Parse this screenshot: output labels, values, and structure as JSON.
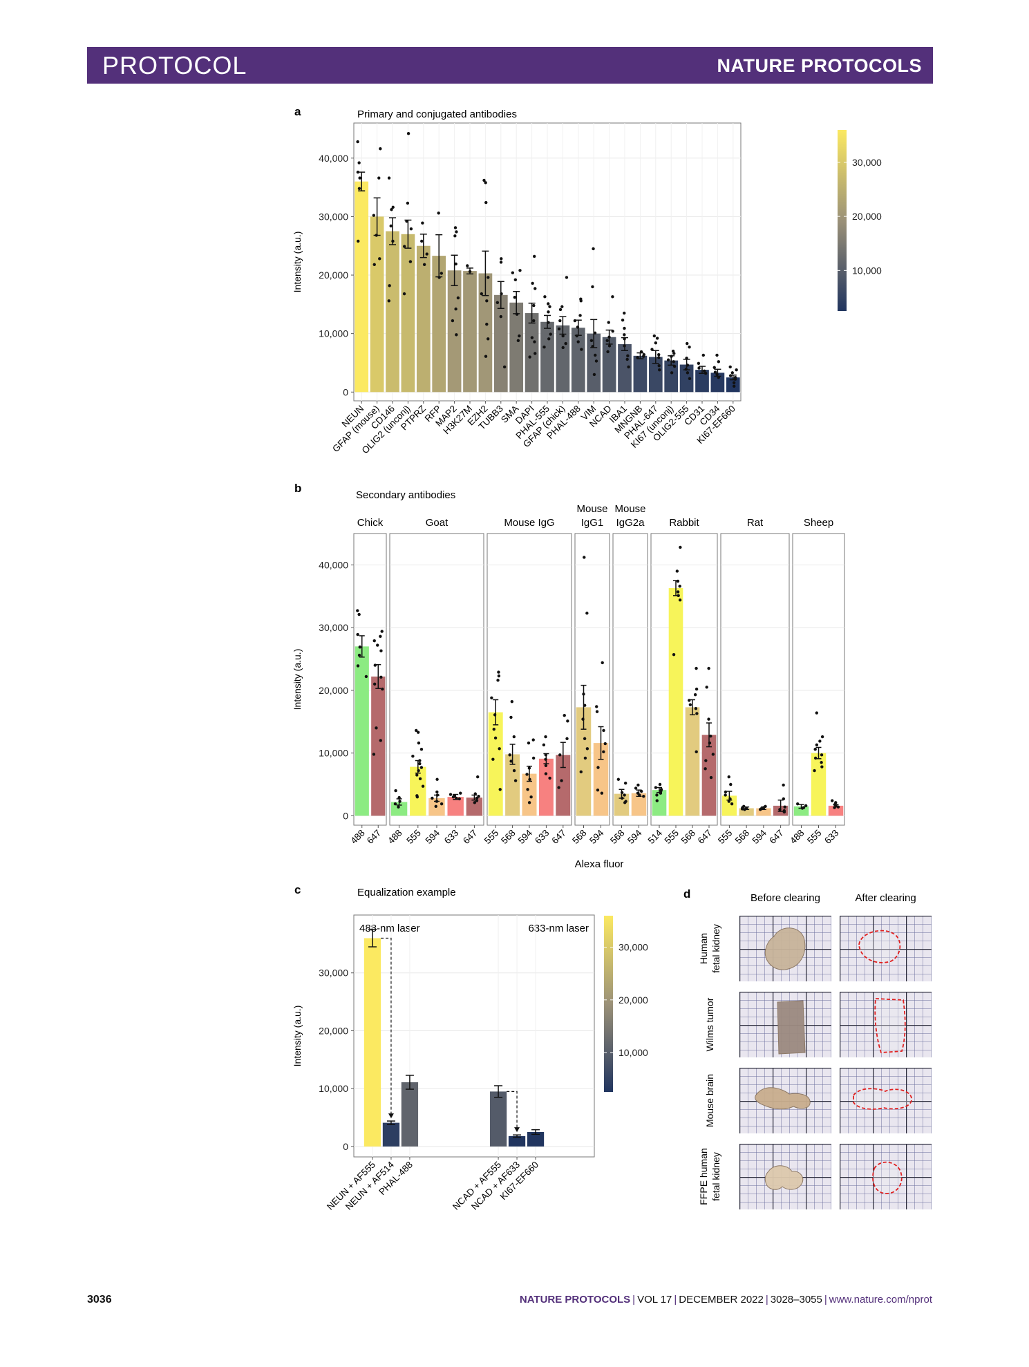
{
  "header": {
    "section": "PROTOCOL",
    "journal": "NATURE PROTOCOLS"
  },
  "footer": {
    "page": "3036",
    "journal": "NATURE PROTOCOLS",
    "volume": "VOL 17",
    "date": "DECEMBER 2022",
    "pages": "3028–3055",
    "url": "www.nature.com/nprot"
  },
  "colors": {
    "banner": "#53307a",
    "viridis_low": "#21355f",
    "viridis_mid": "#9b9178",
    "viridis_high": "#fbe961"
  },
  "chart_data": [
    {
      "id": "a",
      "panel_label": "a",
      "type": "bar",
      "title": "Primary and conjugated antibodies",
      "ylabel": "Intensity (a.u.)",
      "ylim": [
        -1500,
        46000
      ],
      "yticks": [
        0,
        10000,
        20000,
        30000,
        40000
      ],
      "ytick_labels": [
        "0",
        "10,000",
        "20,000",
        "30,000",
        "40,000"
      ],
      "colorbar": {
        "min": 2500,
        "max": 36000,
        "ticks": [
          10000,
          20000,
          30000
        ],
        "tick_labels": [
          "10,000",
          "20,000",
          "30,000"
        ]
      },
      "categories": [
        "NEUN",
        "GFAP (mouse)",
        "CD146",
        "OLIG2 (unconj)",
        "PTPRZ",
        "RFP",
        "MAP2",
        "H3K27M",
        "EZH2",
        "TUBB3",
        "SMA",
        "DAPI",
        "PHAL-555",
        "GFAP (chick)",
        "PHAL-488",
        "VIM",
        "NCAD",
        "IBA1",
        "MNGNB",
        "PHAL-647",
        "KI67 (unconj)",
        "OLIG2-555",
        "CD31",
        "CD34",
        "KI67-EF660"
      ],
      "values": [
        36000,
        30000,
        27500,
        27000,
        25000,
        23300,
        20800,
        20700,
        20300,
        16600,
        15300,
        13500,
        12000,
        11400,
        11000,
        10000,
        9400,
        8200,
        6200,
        6000,
        5400,
        4700,
        3800,
        3300,
        2500
      ],
      "errors": [
        1600,
        3200,
        2300,
        2400,
        2000,
        3600,
        2600,
        500,
        3800,
        2300,
        1900,
        1700,
        1100,
        1500,
        1300,
        2400,
        1200,
        1100,
        500,
        1100,
        800,
        900,
        600,
        600,
        400
      ],
      "points": [
        [
          42800,
          39200,
          37600,
          36600,
          34800,
          25800
        ],
        [
          41600,
          36600,
          30200,
          26800,
          22800,
          21800
        ],
        [
          36600,
          31600,
          31200,
          28400,
          25800,
          18200,
          15600
        ],
        [
          44200,
          32300,
          29200,
          27900,
          24900,
          22300,
          16800
        ],
        [
          28900,
          25800,
          23600,
          21800
        ],
        [
          30600,
          20300,
          19600
        ],
        [
          28100,
          27400,
          26700,
          21900,
          16100,
          14200,
          12200,
          9800
        ],
        [
          21600,
          20600
        ],
        [
          36200,
          35800,
          32400,
          19600,
          16800,
          15600,
          11600,
          9100,
          6100
        ],
        [
          22800,
          22200,
          16800,
          15300,
          12900,
          4300
        ],
        [
          20800,
          20400,
          19200,
          16200,
          13300,
          9600,
          8800
        ],
        [
          23200,
          18600,
          17700,
          14800,
          12200,
          9300,
          8600,
          6600,
          6000
        ],
        [
          16300,
          15100,
          14600,
          13700,
          11900,
          9900,
          9100,
          7700
        ],
        [
          19600,
          14600,
          14100,
          12200,
          10800,
          9600,
          8300,
          7600
        ],
        [
          15900,
          15600,
          13100,
          12200,
          11100,
          9600,
          8600,
          7300
        ],
        [
          24500,
          18000,
          10100,
          8800,
          7800,
          6300,
          5300,
          3000
        ],
        [
          16300,
          11900,
          10400,
          9400,
          8800,
          7900,
          6900
        ],
        [
          13500,
          12300,
          10900,
          9800,
          9100,
          7900,
          6200,
          5600,
          4300
        ],
        [
          6900,
          6400,
          6100,
          5900
        ],
        [
          9600,
          9200,
          8400,
          7300,
          6400,
          5900,
          4500,
          3800
        ],
        [
          7000,
          6600,
          6100,
          5500,
          5200,
          4400,
          3300
        ],
        [
          8300,
          7700,
          5800,
          4600,
          3900,
          3300,
          2300
        ],
        [
          6300,
          4900,
          4100,
          3600,
          3200
        ],
        [
          6300,
          5200,
          4200,
          3400,
          3000,
          2500
        ],
        [
          4300,
          3800,
          3300,
          2800,
          2500,
          2200,
          1600,
          1000
        ]
      ]
    },
    {
      "id": "b",
      "panel_label": "b",
      "type": "bar",
      "title": "Secondary antibodies",
      "xlabel": "Alexa fluor",
      "ylabel": "Intensity (a.u.)",
      "ylim": [
        -1500,
        45000
      ],
      "yticks": [
        0,
        10000,
        20000,
        30000,
        40000
      ],
      "ytick_labels": [
        "0",
        "10,000",
        "20,000",
        "30,000",
        "40,000"
      ],
      "fluor_colors": {
        "488": "#8ceb82",
        "514": "#8ceb82",
        "555": "#f7f45a",
        "568": "#e2cb7f",
        "594": "#f7c588",
        "633": "#f78180",
        "647": "#b56a6c"
      },
      "facets": [
        {
          "label_lines": [
            "Chick"
          ],
          "categories": [
            "488",
            "647"
          ],
          "values": [
            27000,
            22200
          ],
          "errors": [
            1700,
            1900
          ],
          "points": [
            [
              32700,
              32100,
              28900,
              26900,
              25600,
              23900,
              22200
            ],
            [
              29400,
              28600,
              27900,
              27200,
              26300,
              24000,
              22100,
              21000,
              20200,
              14000,
              12000,
              9800
            ]
          ]
        },
        {
          "label_lines": [
            "Goat"
          ],
          "categories": [
            "488",
            "555",
            "594",
            "633",
            "647"
          ],
          "values": [
            2200,
            7800,
            2800,
            3000,
            2900
          ],
          "errors": [
            500,
            1000,
            500,
            400,
            400
          ],
          "points": [
            [
              4000,
              2900,
              2300,
              1900,
              1400
            ],
            [
              13600,
              13300,
              11600,
              10600,
              9500,
              8800,
              8300,
              7700,
              7200,
              6500,
              5900,
              4700,
              3200,
              3000
            ],
            [
              5800,
              3800,
              3300,
              2800,
              2300,
              1900,
              1500
            ],
            [
              3600,
              3400,
              3200,
              3000,
              2800,
              2700
            ],
            [
              6200,
              3500,
              3100,
              2800,
              2400,
              2100
            ]
          ]
        },
        {
          "label_lines": [
            "Mouse IgG"
          ],
          "categories": [
            "555",
            "568",
            "594",
            "633",
            "647"
          ],
          "values": [
            16500,
            9800,
            6700,
            9100,
            9700
          ],
          "errors": [
            2000,
            1600,
            1200,
            800,
            2000
          ],
          "points": [
            [
              22900,
              22300,
              21600,
              18800,
              16100,
              13800,
              12400,
              10700,
              9000,
              4200
            ],
            [
              18200,
              15700,
              12600,
              9700,
              8700,
              7200,
              5600
            ],
            [
              12100,
              11600,
              9200,
              7600,
              6600,
              5800,
              4200,
              3000,
              2100
            ],
            [
              12600,
              11300,
              9700,
              9000,
              8000,
              6700,
              6000
            ],
            [
              16000,
              15100,
              12300,
              9700,
              5600,
              4500
            ]
          ]
        },
        {
          "label_lines": [
            "Mouse",
            "IgG1"
          ],
          "categories": [
            "568",
            "594"
          ],
          "values": [
            17300,
            11600
          ],
          "errors": [
            3500,
            2600
          ],
          "points": [
            [
              41200,
              32300,
              19400,
              17600,
              15400,
              12300,
              10700,
              9200,
              7000
            ],
            [
              24400,
              17400,
              16600,
              13600,
              11500,
              10200,
              7700,
              4100,
              3600
            ]
          ]
        },
        {
          "label_lines": [
            "Mouse",
            "IgG2a"
          ],
          "categories": [
            "568",
            "594"
          ],
          "values": [
            3500,
            3600
          ],
          "errors": [
            700,
            500
          ],
          "points": [
            [
              5800,
              5200,
              3700,
              3300,
              2800,
              2300,
              2100
            ],
            [
              4900,
              4400,
              3900,
              3600,
              3300,
              3100
            ]
          ]
        },
        {
          "label_lines": [
            "Rabbit"
          ],
          "categories": [
            "514",
            "555",
            "568",
            "647"
          ],
          "values": [
            4100,
            36300,
            17300,
            12900
          ],
          "errors": [
            400,
            1200,
            1200,
            1900
          ],
          "points": [
            [
              5000,
              4500,
              4200,
              4000,
              3600,
              3300,
              2400
            ],
            [
              42800,
              39000,
              37400,
              36600,
              35700,
              35100,
              34400,
              25700
            ],
            [
              23500,
              20200,
              19300,
              18400,
              17700,
              17100,
              16300,
              10200
            ],
            [
              23500,
              20500,
              15400,
              12700,
              11600,
              9800,
              8800,
              7500,
              6100
            ]
          ]
        },
        {
          "label_lines": [
            "Rat"
          ],
          "categories": [
            "555",
            "568",
            "594",
            "647"
          ],
          "values": [
            3200,
            1200,
            1200,
            1600
          ],
          "errors": [
            700,
            200,
            200,
            900
          ],
          "points": [
            [
              6200,
              5000,
              3800,
              3300,
              2700,
              2300,
              1900
            ],
            [
              1500,
              1300,
              1200,
              1100,
              1000
            ],
            [
              1500,
              1300,
              1200,
              1100,
              1000
            ],
            [
              4900,
              2700,
              1400,
              1000,
              800,
              600
            ]
          ]
        },
        {
          "label_lines": [
            "Sheep"
          ],
          "categories": [
            "488",
            "555",
            "633"
          ],
          "values": [
            1500,
            10000,
            1600
          ],
          "errors": [
            300,
            900,
            200
          ],
          "points": [
            [
              1900,
              1600,
              1300,
              1200
            ],
            [
              16400,
              12600,
              11900,
              11300,
              10600,
              9700,
              9200,
              8500,
              7800,
              7200
            ],
            [
              2400,
              2100,
              1800,
              1600,
              1400,
              1300
            ]
          ]
        }
      ]
    },
    {
      "id": "c",
      "panel_label": "c",
      "type": "bar",
      "title": "Equalization example",
      "ylabel": "Intensity (a.u.)",
      "ylim": [
        -1800,
        40000
      ],
      "yticks": [
        0,
        10000,
        20000,
        30000
      ],
      "ytick_labels": [
        "0",
        "10,000",
        "20,000",
        "30,000"
      ],
      "colorbar": {
        "min": 2500,
        "max": 36000,
        "ticks": [
          10000,
          20000,
          30000
        ],
        "tick_labels": [
          "10,000",
          "20,000",
          "30,000"
        ]
      },
      "groups": [
        {
          "label": "488-nm laser",
          "categories": [
            "NEUN + AF555",
            "NEUN + AF514",
            "PHAL-488"
          ],
          "values": [
            36000,
            4100,
            11100
          ],
          "errors": [
            1500,
            300,
            1200
          ]
        },
        {
          "label": "633-nm laser",
          "categories": [
            "NCAD + AF555",
            "NCAD + AF633",
            "KI67-EF660"
          ],
          "values": [
            9500,
            1800,
            2500
          ],
          "errors": [
            1000,
            200,
            400
          ]
        }
      ]
    }
  ],
  "panel_d": {
    "panel_label": "d",
    "col_headers": [
      "Before clearing",
      "After clearing"
    ],
    "rows": [
      {
        "label_lines": [
          "Human",
          "fetal kidney"
        ]
      },
      {
        "label_lines": [
          "Wilms tumor"
        ]
      },
      {
        "label_lines": [
          "Mouse brain"
        ]
      },
      {
        "label_lines": [
          "FFPE human",
          "fetal kidney"
        ]
      }
    ]
  }
}
